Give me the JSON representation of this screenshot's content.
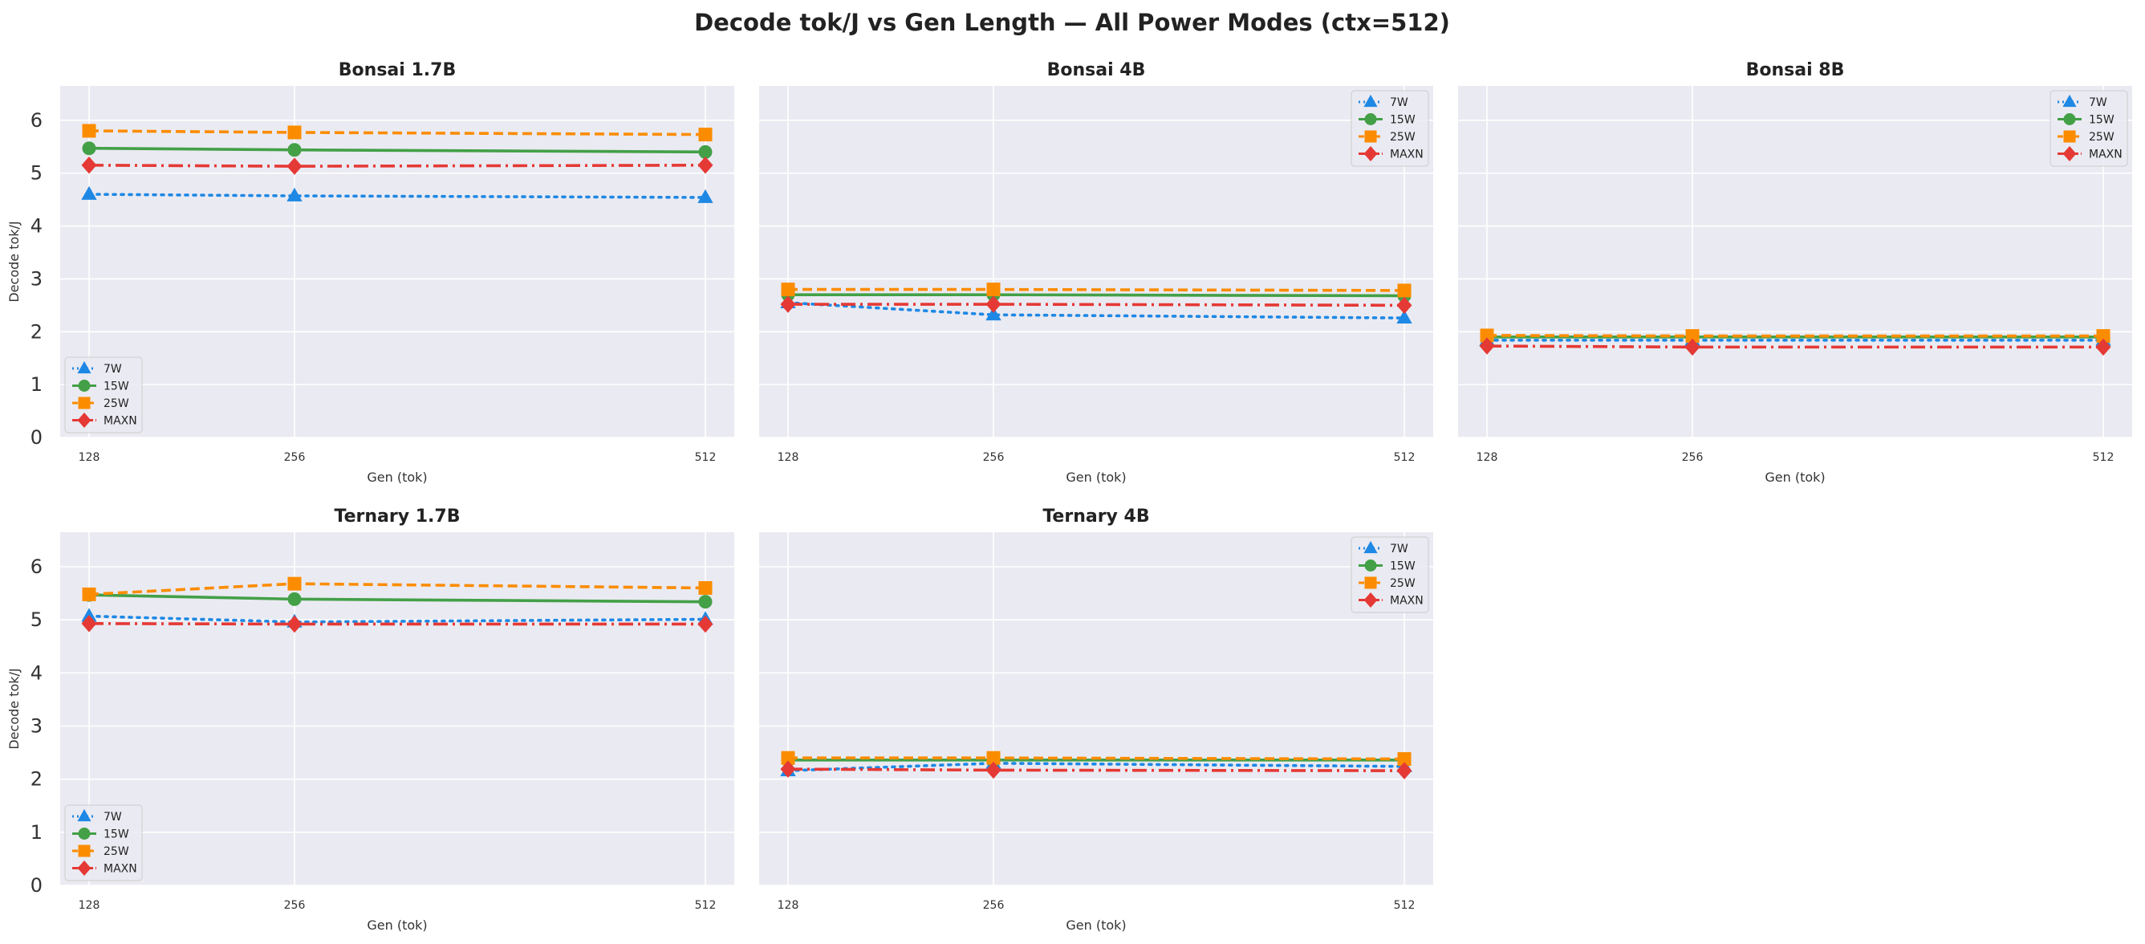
{
  "figure": {
    "suptitle": "Decode tok/J vs Gen Length — All Power Modes (ctx=512)"
  },
  "chart_data": [
    {
      "type": "line",
      "title": "Bonsai 1.7B",
      "xlabel": "Gen (tok)",
      "ylabel": "Decode tok/J",
      "x": [
        128,
        256,
        512
      ],
      "xticks": [
        "128",
        "256",
        "512"
      ],
      "ylim": [
        0,
        6.65
      ],
      "yticks": [
        0,
        1,
        2,
        3,
        4,
        5,
        6
      ],
      "grid": true,
      "legend": "lower-left",
      "series": [
        {
          "name": "7W",
          "values": [
            4.6,
            4.57,
            4.54
          ]
        },
        {
          "name": "15W",
          "values": [
            5.47,
            5.44,
            5.4
          ]
        },
        {
          "name": "25W",
          "values": [
            5.8,
            5.77,
            5.73
          ]
        },
        {
          "name": "MAXN",
          "values": [
            5.15,
            5.13,
            5.15
          ]
        }
      ]
    },
    {
      "type": "line",
      "title": "Bonsai 4B",
      "xlabel": "Gen (tok)",
      "ylabel": "",
      "x": [
        128,
        256,
        512
      ],
      "xticks": [
        "128",
        "256",
        "512"
      ],
      "ylim": [
        0,
        6.65
      ],
      "yticks": [
        0,
        1,
        2,
        3,
        4,
        5,
        6
      ],
      "grid": true,
      "legend": "upper-right",
      "series": [
        {
          "name": "7W",
          "values": [
            2.55,
            2.32,
            2.26
          ]
        },
        {
          "name": "15W",
          "values": [
            2.7,
            2.7,
            2.68
          ]
        },
        {
          "name": "25W",
          "values": [
            2.8,
            2.8,
            2.78
          ]
        },
        {
          "name": "MAXN",
          "values": [
            2.52,
            2.52,
            2.5
          ]
        }
      ]
    },
    {
      "type": "line",
      "title": "Bonsai 8B",
      "xlabel": "Gen (tok)",
      "ylabel": "",
      "x": [
        128,
        256,
        512
      ],
      "xticks": [
        "128",
        "256",
        "512"
      ],
      "ylim": [
        0,
        6.65
      ],
      "yticks": [
        0,
        1,
        2,
        3,
        4,
        5,
        6
      ],
      "grid": true,
      "legend": "upper-right",
      "series": [
        {
          "name": "7W",
          "values": [
            1.84,
            1.84,
            1.84
          ]
        },
        {
          "name": "15W",
          "values": [
            1.9,
            1.9,
            1.9
          ]
        },
        {
          "name": "25W",
          "values": [
            1.93,
            1.92,
            1.92
          ]
        },
        {
          "name": "MAXN",
          "values": [
            1.73,
            1.71,
            1.71
          ]
        }
      ]
    },
    {
      "type": "line",
      "title": "Ternary 1.7B",
      "xlabel": "Gen (tok)",
      "ylabel": "Decode tok/J",
      "x": [
        128,
        256,
        512
      ],
      "xticks": [
        "128",
        "256",
        "512"
      ],
      "ylim": [
        0,
        6.65
      ],
      "yticks": [
        0,
        1,
        2,
        3,
        4,
        5,
        6
      ],
      "grid": true,
      "legend": "lower-left",
      "series": [
        {
          "name": "7W",
          "values": [
            5.07,
            4.96,
            5.01
          ]
        },
        {
          "name": "15W",
          "values": [
            5.47,
            5.39,
            5.34
          ]
        },
        {
          "name": "25W",
          "values": [
            5.48,
            5.68,
            5.6
          ]
        },
        {
          "name": "MAXN",
          "values": [
            4.93,
            4.92,
            4.92
          ]
        }
      ]
    },
    {
      "type": "line",
      "title": "Ternary 4B",
      "xlabel": "Gen (tok)",
      "ylabel": "",
      "x": [
        128,
        256,
        512
      ],
      "xticks": [
        "128",
        "256",
        "512"
      ],
      "ylim": [
        0,
        6.65
      ],
      "yticks": [
        0,
        1,
        2,
        3,
        4,
        5,
        6
      ],
      "grid": true,
      "legend": "upper-right",
      "series": [
        {
          "name": "7W",
          "values": [
            2.16,
            2.3,
            2.24
          ]
        },
        {
          "name": "15W",
          "values": [
            2.36,
            2.36,
            2.36
          ]
        },
        {
          "name": "25W",
          "values": [
            2.4,
            2.4,
            2.38
          ]
        },
        {
          "name": "MAXN",
          "values": [
            2.19,
            2.17,
            2.16
          ]
        }
      ]
    }
  ],
  "styles": {
    "panel_bg": "#EAEAF2",
    "grid_color": "#FFFFFF",
    "series": [
      {
        "color": "#1E88E5",
        "marker": "triangle",
        "dash": "dotted"
      },
      {
        "color": "#43A047",
        "marker": "circle",
        "dash": "solid"
      },
      {
        "color": "#FB8C00",
        "marker": "square",
        "dash": "dashed"
      },
      {
        "color": "#E53935",
        "marker": "diamond",
        "dash": "dashdot"
      }
    ]
  }
}
